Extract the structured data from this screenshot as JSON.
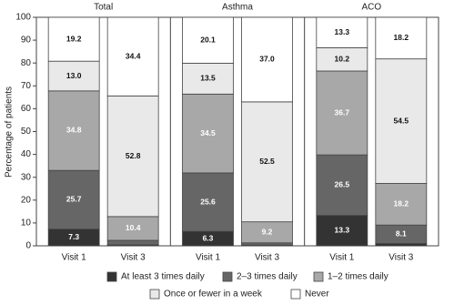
{
  "chart_data": {
    "type": "stacked-bar",
    "y_label": "Percentage of patients",
    "ylim": [
      0,
      100
    ],
    "yticks": [
      0,
      10,
      20,
      30,
      40,
      50,
      60,
      70,
      80,
      90,
      100
    ],
    "series": [
      {
        "name": "At least 3 times daily",
        "color": "#333333"
      },
      {
        "name": "2–3 times daily",
        "color": "#666666"
      },
      {
        "name": "1–2 times daily",
        "color": "#a8a8a8"
      },
      {
        "name": "Once or fewer in a week",
        "color": "#e9e9e9"
      },
      {
        "name": "Never",
        "color": "#ffffff"
      }
    ],
    "panels": [
      {
        "title": "Total",
        "categories": [
          "Visit 1",
          "Visit 3"
        ],
        "series": [
          {
            "values": [
              7.3,
              0.4
            ],
            "value_labels": [
              "7.3",
              null
            ]
          },
          {
            "values": [
              25.7,
              2.0
            ],
            "value_labels": [
              "25.7",
              null
            ]
          },
          {
            "values": [
              34.8,
              10.4
            ],
            "value_labels": [
              "34.8",
              "10.4"
            ]
          },
          {
            "values": [
              13.0,
              52.8
            ],
            "value_labels": [
              "13.0",
              "52.8"
            ]
          },
          {
            "values": [
              19.2,
              34.4
            ],
            "value_labels": [
              "19.2",
              "34.4"
            ]
          }
        ]
      },
      {
        "title": "Asthma",
        "categories": [
          "Visit 1",
          "Visit 3"
        ],
        "series": [
          {
            "values": [
              6.3,
              0.3
            ],
            "value_labels": [
              "6.3",
              null
            ]
          },
          {
            "values": [
              25.6,
              1.0
            ],
            "value_labels": [
              "25.6",
              null
            ]
          },
          {
            "values": [
              34.5,
              9.2
            ],
            "value_labels": [
              "34.5",
              "9.2"
            ]
          },
          {
            "values": [
              13.5,
              52.5
            ],
            "value_labels": [
              "13.5",
              "52.5"
            ]
          },
          {
            "values": [
              20.1,
              37.0
            ],
            "value_labels": [
              "20.1",
              "37.0"
            ]
          }
        ]
      },
      {
        "title": "ACO",
        "categories": [
          "Visit 1",
          "Visit 3"
        ],
        "series": [
          {
            "values": [
              13.3,
              1.0
            ],
            "value_labels": [
              "13.3",
              null
            ]
          },
          {
            "values": [
              26.5,
              8.1
            ],
            "value_labels": [
              "26.5",
              "8.1"
            ]
          },
          {
            "values": [
              36.7,
              18.2
            ],
            "value_labels": [
              "36.7",
              "18.2"
            ]
          },
          {
            "values": [
              10.2,
              54.5
            ],
            "value_labels": [
              "10.2",
              "54.5"
            ]
          },
          {
            "values": [
              13.3,
              18.2
            ],
            "value_labels": [
              "13.3",
              "18.2"
            ]
          }
        ]
      }
    ]
  }
}
